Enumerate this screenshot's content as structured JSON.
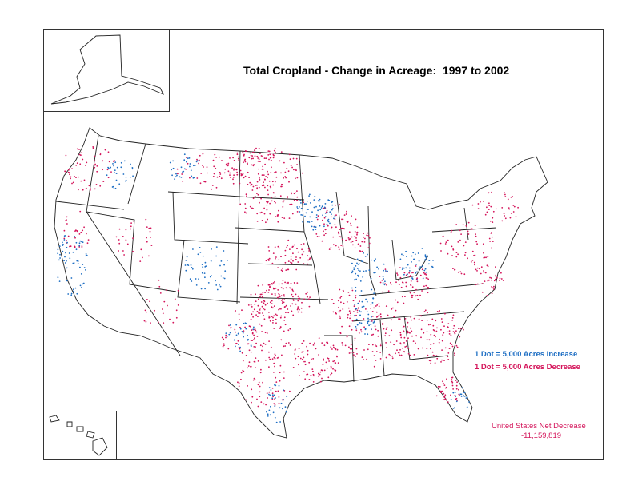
{
  "title": "Total Cropland - Change in Acreage:  1997 to 2002",
  "legend": {
    "increase_label": "1 Dot = 5,000 Acres Increase",
    "decrease_label": "1 Dot = 5,000 Acres Decrease",
    "increase_color": "#1f6fc4",
    "decrease_color": "#d4145a"
  },
  "net": {
    "label": "United States Net Decrease",
    "value": "-11,159,819",
    "color": "#d4145a"
  },
  "insets": [
    "Alaska",
    "Hawaii"
  ]
}
